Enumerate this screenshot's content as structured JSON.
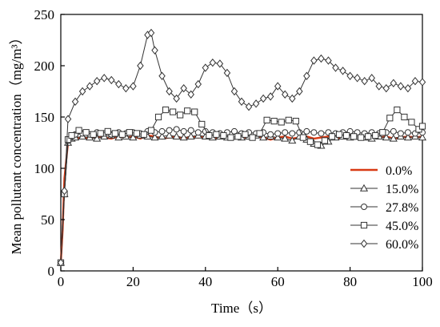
{
  "chart_data": {
    "type": "line",
    "xlabel": "Time（s）",
    "ylabel": "Mean pollutant concentration（mg/m³）",
    "xlim": [
      0,
      100
    ],
    "ylim": [
      0,
      250
    ],
    "xticks": [
      0,
      20,
      40,
      60,
      80,
      100
    ],
    "yticks": [
      0,
      50,
      100,
      150,
      200,
      250
    ],
    "grid": false,
    "legend_position": "lower-right",
    "series": [
      {
        "name": "0.0%",
        "color": "#d83a14",
        "marker": "none",
        "points": [
          [
            0,
            8
          ],
          [
            0.5,
            40
          ],
          [
            1,
            90
          ],
          [
            2,
            125
          ],
          [
            3,
            128
          ],
          [
            4,
            129
          ],
          [
            6,
            130
          ],
          [
            8,
            129
          ],
          [
            10,
            131
          ],
          [
            12,
            130
          ],
          [
            14,
            129
          ],
          [
            16,
            131
          ],
          [
            18,
            130
          ],
          [
            20,
            131
          ],
          [
            22,
            129
          ],
          [
            24,
            132
          ],
          [
            26,
            131
          ],
          [
            28,
            129
          ],
          [
            30,
            130
          ],
          [
            32,
            131
          ],
          [
            34,
            129
          ],
          [
            36,
            131
          ],
          [
            38,
            130
          ],
          [
            40,
            131
          ],
          [
            42,
            130
          ],
          [
            44,
            129
          ],
          [
            46,
            131
          ],
          [
            48,
            130
          ],
          [
            50,
            131
          ],
          [
            52,
            129
          ],
          [
            54,
            131
          ],
          [
            56,
            130
          ],
          [
            58,
            128
          ],
          [
            60,
            130
          ],
          [
            62,
            131
          ],
          [
            64,
            129
          ],
          [
            66,
            130
          ],
          [
            68,
            131
          ],
          [
            70,
            129
          ],
          [
            72,
            130
          ],
          [
            74,
            131
          ],
          [
            76,
            129
          ],
          [
            78,
            130
          ],
          [
            80,
            131
          ],
          [
            82,
            130
          ],
          [
            84,
            129
          ],
          [
            86,
            131
          ],
          [
            88,
            130
          ],
          [
            90,
            131
          ],
          [
            92,
            129
          ],
          [
            94,
            130
          ],
          [
            96,
            131
          ],
          [
            98,
            130
          ],
          [
            100,
            131
          ]
        ]
      },
      {
        "name": "15.0%",
        "color": "#333333",
        "marker": "triangle",
        "points": [
          [
            0,
            8
          ],
          [
            1,
            75
          ],
          [
            2,
            125
          ],
          [
            3,
            129
          ],
          [
            4,
            130
          ],
          [
            6,
            131
          ],
          [
            8,
            130
          ],
          [
            10,
            129
          ],
          [
            12,
            131
          ],
          [
            14,
            132
          ],
          [
            16,
            130
          ],
          [
            18,
            131
          ],
          [
            20,
            130
          ],
          [
            22,
            132
          ],
          [
            24,
            131
          ],
          [
            26,
            130
          ],
          [
            28,
            131
          ],
          [
            30,
            132
          ],
          [
            32,
            131
          ],
          [
            34,
            130
          ],
          [
            36,
            131
          ],
          [
            38,
            132
          ],
          [
            40,
            131
          ],
          [
            42,
            130
          ],
          [
            44,
            131
          ],
          [
            46,
            130
          ],
          [
            48,
            131
          ],
          [
            50,
            130
          ],
          [
            52,
            131
          ],
          [
            54,
            132
          ],
          [
            56,
            130
          ],
          [
            58,
            131
          ],
          [
            60,
            130
          ],
          [
            62,
            129
          ],
          [
            64,
            127
          ],
          [
            66,
            131
          ],
          [
            68,
            128
          ],
          [
            70,
            124
          ],
          [
            72,
            122
          ],
          [
            74,
            126
          ],
          [
            76,
            130
          ],
          [
            78,
            131
          ],
          [
            80,
            130
          ],
          [
            82,
            131
          ],
          [
            84,
            130
          ],
          [
            86,
            129
          ],
          [
            88,
            131
          ],
          [
            90,
            130
          ],
          [
            92,
            129
          ],
          [
            94,
            131
          ],
          [
            96,
            130
          ],
          [
            98,
            131
          ],
          [
            100,
            130
          ]
        ]
      },
      {
        "name": "27.8%",
        "color": "#333333",
        "marker": "circle",
        "points": [
          [
            0,
            8
          ],
          [
            1,
            75
          ],
          [
            2,
            127
          ],
          [
            3,
            131
          ],
          [
            4,
            133
          ],
          [
            6,
            134
          ],
          [
            8,
            133
          ],
          [
            10,
            135
          ],
          [
            12,
            134
          ],
          [
            14,
            133
          ],
          [
            16,
            135
          ],
          [
            18,
            134
          ],
          [
            20,
            135
          ],
          [
            22,
            134
          ],
          [
            24,
            136
          ],
          [
            26,
            135
          ],
          [
            28,
            136
          ],
          [
            30,
            137
          ],
          [
            32,
            138
          ],
          [
            34,
            136
          ],
          [
            36,
            137
          ],
          [
            38,
            135
          ],
          [
            40,
            136
          ],
          [
            42,
            135
          ],
          [
            44,
            134
          ],
          [
            46,
            135
          ],
          [
            48,
            136
          ],
          [
            50,
            134
          ],
          [
            52,
            135
          ],
          [
            54,
            134
          ],
          [
            56,
            135
          ],
          [
            58,
            133
          ],
          [
            60,
            134
          ],
          [
            62,
            135
          ],
          [
            64,
            134
          ],
          [
            66,
            135
          ],
          [
            68,
            136
          ],
          [
            70,
            135
          ],
          [
            72,
            134
          ],
          [
            74,
            135
          ],
          [
            76,
            134
          ],
          [
            78,
            135
          ],
          [
            80,
            136
          ],
          [
            82,
            135
          ],
          [
            84,
            134
          ],
          [
            86,
            135
          ],
          [
            88,
            134
          ],
          [
            90,
            135
          ],
          [
            92,
            136
          ],
          [
            94,
            134
          ],
          [
            96,
            135
          ],
          [
            98,
            134
          ],
          [
            100,
            135
          ]
        ]
      },
      {
        "name": "45.0%",
        "color": "#333333",
        "marker": "square",
        "points": [
          [
            0,
            8
          ],
          [
            1,
            75
          ],
          [
            2,
            128
          ],
          [
            3,
            132
          ],
          [
            5,
            137
          ],
          [
            7,
            135
          ],
          [
            9,
            133
          ],
          [
            11,
            134
          ],
          [
            13,
            136
          ],
          [
            15,
            134
          ],
          [
            17,
            133
          ],
          [
            19,
            135
          ],
          [
            21,
            134
          ],
          [
            23,
            133
          ],
          [
            25,
            137
          ],
          [
            27,
            150
          ],
          [
            29,
            157
          ],
          [
            31,
            155
          ],
          [
            33,
            152
          ],
          [
            35,
            156
          ],
          [
            37,
            155
          ],
          [
            39,
            143
          ],
          [
            41,
            132
          ],
          [
            43,
            133
          ],
          [
            45,
            132
          ],
          [
            47,
            130
          ],
          [
            49,
            131
          ],
          [
            51,
            133
          ],
          [
            53,
            130
          ],
          [
            55,
            134
          ],
          [
            57,
            147
          ],
          [
            59,
            146
          ],
          [
            61,
            145
          ],
          [
            63,
            147
          ],
          [
            65,
            146
          ],
          [
            67,
            130
          ],
          [
            69,
            126
          ],
          [
            71,
            123
          ],
          [
            73,
            127
          ],
          [
            75,
            131
          ],
          [
            77,
            133
          ],
          [
            79,
            132
          ],
          [
            81,
            131
          ],
          [
            83,
            130
          ],
          [
            85,
            131
          ],
          [
            87,
            132
          ],
          [
            89,
            135
          ],
          [
            91,
            149
          ],
          [
            93,
            157
          ],
          [
            95,
            150
          ],
          [
            97,
            145
          ],
          [
            99,
            138
          ],
          [
            100,
            141
          ]
        ]
      },
      {
        "name": "60.0%",
        "color": "#333333",
        "marker": "diamond",
        "points": [
          [
            0,
            8
          ],
          [
            1,
            78
          ],
          [
            2,
            148
          ],
          [
            4,
            165
          ],
          [
            6,
            175
          ],
          [
            8,
            180
          ],
          [
            10,
            185
          ],
          [
            12,
            188
          ],
          [
            14,
            186
          ],
          [
            16,
            182
          ],
          [
            18,
            178
          ],
          [
            20,
            180
          ],
          [
            22,
            200
          ],
          [
            24,
            230
          ],
          [
            25,
            232
          ],
          [
            26,
            215
          ],
          [
            28,
            190
          ],
          [
            30,
            175
          ],
          [
            32,
            168
          ],
          [
            34,
            178
          ],
          [
            36,
            172
          ],
          [
            38,
            182
          ],
          [
            40,
            198
          ],
          [
            42,
            203
          ],
          [
            44,
            202
          ],
          [
            46,
            193
          ],
          [
            48,
            175
          ],
          [
            50,
            165
          ],
          [
            52,
            160
          ],
          [
            54,
            163
          ],
          [
            56,
            168
          ],
          [
            58,
            170
          ],
          [
            60,
            180
          ],
          [
            62,
            172
          ],
          [
            64,
            168
          ],
          [
            66,
            175
          ],
          [
            68,
            190
          ],
          [
            70,
            205
          ],
          [
            72,
            207
          ],
          [
            74,
            205
          ],
          [
            76,
            198
          ],
          [
            78,
            195
          ],
          [
            80,
            190
          ],
          [
            82,
            188
          ],
          [
            84,
            185
          ],
          [
            86,
            188
          ],
          [
            88,
            180
          ],
          [
            90,
            178
          ],
          [
            92,
            183
          ],
          [
            94,
            180
          ],
          [
            96,
            178
          ],
          [
            98,
            185
          ],
          [
            100,
            184
          ]
        ]
      }
    ]
  }
}
